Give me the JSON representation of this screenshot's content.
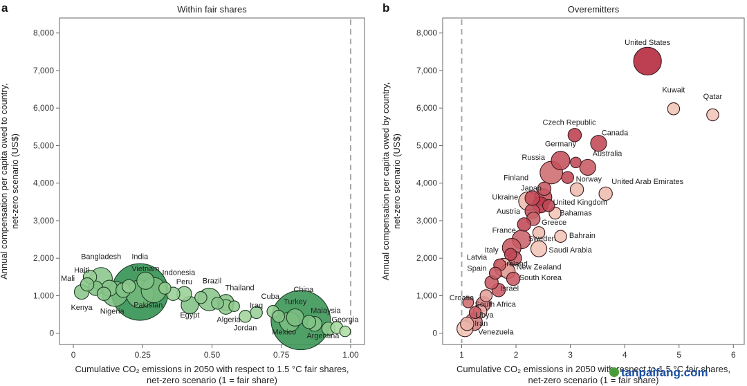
{
  "watermark": "tanpaifang.com",
  "chart_data": [
    {
      "type": "scatter",
      "panel_label": "a",
      "title": "Within fair shares",
      "xlabel_line1": "Cumulative CO₂ emissions in 2050 with respect to 1.5 °C fair shares,",
      "xlabel_line2": "net-zero scenario (1 = fair share)",
      "ylabel_line1": "Annual compensation per capita owed to country,",
      "ylabel_line2": "net-zero scenario (US$)",
      "xlim": [
        -0.05,
        1.05
      ],
      "ylim": [
        -300,
        8400
      ],
      "xticks": [
        0,
        0.25,
        0.5,
        0.75,
        1.0
      ],
      "xtick_labels": [
        "0",
        "0.25",
        "0.50",
        "0.75",
        "1.00"
      ],
      "yticks": [
        0,
        1000,
        2000,
        3000,
        4000,
        5000,
        6000,
        7000,
        8000
      ],
      "ytick_labels": [
        "0",
        "1,000",
        "2,000",
        "3,000",
        "4,000",
        "5,000",
        "6,000",
        "7,000",
        "8,000"
      ],
      "reference_x": 1.0,
      "color_scale": "green",
      "points": [
        {
          "label": "India",
          "x": 0.24,
          "y": 1100,
          "size": 40,
          "shade": 0.0,
          "lx": 0.24,
          "ly": 1980
        },
        {
          "label": "China",
          "x": 0.82,
          "y": 350,
          "size": 42,
          "shade": 0.05,
          "lx": 0.83,
          "ly": 1100
        },
        {
          "label": "Bangladesh",
          "x": 0.1,
          "y": 1450,
          "size": 14,
          "shade": 0.6,
          "lx": 0.1,
          "ly": 1980
        },
        {
          "label": "Haiti",
          "x": 0.06,
          "y": 1500,
          "size": 7,
          "shade": 0.7,
          "lx": 0.03,
          "ly": 1620
        },
        {
          "label": "Mali",
          "x": 0.05,
          "y": 1300,
          "size": 7,
          "shade": 0.6,
          "lx": -0.02,
          "ly": 1400
        },
        {
          "label": "Vietnam",
          "x": 0.26,
          "y": 1400,
          "size": 10,
          "shade": 0.55,
          "lx": 0.26,
          "ly": 1650
        },
        {
          "label": "Indonesia",
          "x": 0.29,
          "y": 1150,
          "size": 16,
          "shade": 0.5,
          "lx": 0.38,
          "ly": 1550
        },
        {
          "label": "Pakistan",
          "x": 0.24,
          "y": 1050,
          "size": 18,
          "shade": 0.45,
          "lx": 0.27,
          "ly": 690
        },
        {
          "label": "Nigeria",
          "x": 0.15,
          "y": 1050,
          "size": 16,
          "shade": 0.5,
          "lx": 0.14,
          "ly": 520
        },
        {
          "label": "Kenya",
          "x": 0.03,
          "y": 1100,
          "size": 8,
          "shade": 0.6,
          "lx": 0.03,
          "ly": 620
        },
        {
          "label": "Peru",
          "x": 0.4,
          "y": 1050,
          "size": 8,
          "shade": 0.7,
          "lx": 0.4,
          "ly": 1300
        },
        {
          "label": "Brazil",
          "x": 0.49,
          "y": 900,
          "size": 14,
          "shade": 0.6,
          "lx": 0.5,
          "ly": 1330
        },
        {
          "label": "Egypt",
          "x": 0.42,
          "y": 750,
          "size": 10,
          "shade": 0.55,
          "lx": 0.42,
          "ly": 420
        },
        {
          "label": "Thailand",
          "x": 0.55,
          "y": 820,
          "size": 9,
          "shade": 0.6,
          "lx": 0.6,
          "ly": 1150
        },
        {
          "label": "Algeria",
          "x": 0.55,
          "y": 700,
          "size": 8,
          "shade": 0.65,
          "lx": 0.56,
          "ly": 300
        },
        {
          "label": "Iraq",
          "x": 0.66,
          "y": 550,
          "size": 6,
          "shade": 0.7,
          "lx": 0.66,
          "ly": 680
        },
        {
          "label": "Jordan",
          "x": 0.62,
          "y": 450,
          "size": 6,
          "shade": 0.75,
          "lx": 0.62,
          "ly": 80
        },
        {
          "label": "Cuba",
          "x": 0.72,
          "y": 580,
          "size": 6,
          "shade": 0.7,
          "lx": 0.71,
          "ly": 920
        },
        {
          "label": "Turkey",
          "x": 0.8,
          "y": 420,
          "size": 10,
          "shade": 0.5,
          "lx": 0.8,
          "ly": 780
        },
        {
          "label": "Mexico",
          "x": 0.78,
          "y": 300,
          "size": 12,
          "shade": 0.5,
          "lx": 0.76,
          "ly": -30
        },
        {
          "label": "Malaysia",
          "x": 0.87,
          "y": 250,
          "size": 8,
          "shade": 0.6,
          "lx": 0.91,
          "ly": 540
        },
        {
          "label": "Georgia",
          "x": 0.95,
          "y": 150,
          "size": 6,
          "shade": 0.8,
          "lx": 0.98,
          "ly": 300
        },
        {
          "label": "Argentina",
          "x": 0.92,
          "y": 120,
          "size": 7,
          "shade": 0.65,
          "lx": 0.9,
          "ly": -130
        },
        {
          "label": "",
          "x": 0.98,
          "y": 50,
          "size": 5,
          "shade": 0.85,
          "lx": 0,
          "ly": 0
        },
        {
          "label": "",
          "x": 0.13,
          "y": 1200,
          "size": 9,
          "shade": 0.6,
          "lx": 0,
          "ly": 0
        },
        {
          "label": "",
          "x": 0.18,
          "y": 1150,
          "size": 8,
          "shade": 0.55,
          "lx": 0,
          "ly": 0
        },
        {
          "label": "",
          "x": 0.2,
          "y": 1250,
          "size": 7,
          "shade": 0.65,
          "lx": 0,
          "ly": 0
        },
        {
          "label": "",
          "x": 0.08,
          "y": 1200,
          "size": 8,
          "shade": 0.55,
          "lx": 0,
          "ly": 0
        },
        {
          "label": "",
          "x": 0.11,
          "y": 1050,
          "size": 7,
          "shade": 0.6,
          "lx": 0,
          "ly": 0
        },
        {
          "label": "",
          "x": 0.33,
          "y": 1200,
          "size": 6,
          "shade": 0.65,
          "lx": 0,
          "ly": 0
        },
        {
          "label": "",
          "x": 0.36,
          "y": 1050,
          "size": 7,
          "shade": 0.7,
          "lx": 0,
          "ly": 0
        },
        {
          "label": "",
          "x": 0.46,
          "y": 950,
          "size": 6,
          "shade": 0.65,
          "lx": 0,
          "ly": 0
        },
        {
          "label": "",
          "x": 0.52,
          "y": 800,
          "size": 6,
          "shade": 0.6,
          "lx": 0,
          "ly": 0
        },
        {
          "label": "",
          "x": 0.58,
          "y": 720,
          "size": 5,
          "shade": 0.65,
          "lx": 0,
          "ly": 0
        },
        {
          "label": "",
          "x": 0.74,
          "y": 450,
          "size": 6,
          "shade": 0.6,
          "lx": 0,
          "ly": 0
        },
        {
          "label": "",
          "x": 0.85,
          "y": 300,
          "size": 7,
          "shade": 0.55,
          "lx": 0,
          "ly": 0
        }
      ]
    },
    {
      "type": "scatter",
      "panel_label": "b",
      "title": "Overemitters",
      "xlabel_line1": "Cumulative CO₂ emissions in 2050 with respect to 1.5 °C fair shares,",
      "xlabel_line2": "net-zero scenario (1 = fair share)",
      "ylabel_line1": "Annual compensation per capita owed by country,",
      "ylabel_line2": "net-zero scenario (US$)",
      "xlim": [
        0.65,
        6.2
      ],
      "ylim": [
        -300,
        8400
      ],
      "xticks": [
        1,
        2,
        3,
        4,
        5,
        6
      ],
      "xtick_labels": [
        "1",
        "2",
        "3",
        "4",
        "5",
        "6"
      ],
      "yticks": [
        0,
        1000,
        2000,
        3000,
        4000,
        5000,
        6000,
        7000,
        8000
      ],
      "ytick_labels": [
        "0",
        "1,000",
        "2,000",
        "3,000",
        "4,000",
        "5,000",
        "6,000",
        "7,000",
        "8,000"
      ],
      "reference_x": 1.0,
      "color_scale": "red",
      "points": [
        {
          "label": "United States",
          "x": 4.42,
          "y": 7250,
          "size": 18,
          "shade": 0.0,
          "lx": 4.42,
          "ly": 7680
        },
        {
          "label": "Kuwait",
          "x": 4.9,
          "y": 5980,
          "size": 6,
          "shade": 0.9,
          "lx": 4.9,
          "ly": 6420
        },
        {
          "label": "Qatar",
          "x": 5.62,
          "y": 5820,
          "size": 6,
          "shade": 0.9,
          "lx": 5.62,
          "ly": 6240
        },
        {
          "label": "Czech Republic",
          "x": 3.08,
          "y": 5280,
          "size": 7,
          "shade": 0.15,
          "lx": 2.98,
          "ly": 5550
        },
        {
          "label": "Canada",
          "x": 3.52,
          "y": 5060,
          "size": 9,
          "shade": 0.2,
          "lx": 3.82,
          "ly": 5280
        },
        {
          "label": "Germany",
          "x": 2.82,
          "y": 4600,
          "size": 11,
          "shade": 0.25,
          "lx": 2.82,
          "ly": 4980
        },
        {
          "label": "Australia",
          "x": 3.32,
          "y": 4420,
          "size": 9,
          "shade": 0.3,
          "lx": 3.68,
          "ly": 4720
        },
        {
          "label": "Russia",
          "x": 2.65,
          "y": 4280,
          "size": 14,
          "shade": 0.4,
          "lx": 2.32,
          "ly": 4620
        },
        {
          "label": "Norway",
          "x": 3.12,
          "y": 3830,
          "size": 7,
          "shade": 0.85,
          "lx": 3.34,
          "ly": 4040
        },
        {
          "label": "United Arab Emirates",
          "x": 3.65,
          "y": 3720,
          "size": 7,
          "shade": 0.85,
          "lx": 4.42,
          "ly": 3980
        },
        {
          "label": "Finland",
          "x": 2.52,
          "y": 3850,
          "size": 7,
          "shade": 0.3,
          "lx": 2.0,
          "ly": 4080
        },
        {
          "label": "Japan",
          "x": 2.5,
          "y": 3620,
          "size": 10,
          "shade": 0.25,
          "lx": 2.28,
          "ly": 3800
        },
        {
          "label": "Ukraine",
          "x": 2.22,
          "y": 3520,
          "size": 11,
          "shade": 0.85,
          "lx": 1.8,
          "ly": 3560
        },
        {
          "label": "United Kingdom",
          "x": 2.45,
          "y": 3420,
          "size": 9,
          "shade": 0.1,
          "lx": 3.18,
          "ly": 3420
        },
        {
          "label": "Bahamas",
          "x": 2.72,
          "y": 3200,
          "size": 6,
          "shade": 0.9,
          "lx": 3.1,
          "ly": 3140
        },
        {
          "label": "Austria",
          "x": 2.3,
          "y": 3250,
          "size": 8,
          "shade": 0.25,
          "lx": 1.86,
          "ly": 3180
        },
        {
          "label": "Greece",
          "x": 2.32,
          "y": 3050,
          "size": 7,
          "shade": 0.35,
          "lx": 2.7,
          "ly": 2890
        },
        {
          "label": "France",
          "x": 2.1,
          "y": 2500,
          "size": 11,
          "shade": 0.35,
          "lx": 1.78,
          "ly": 2680
        },
        {
          "label": "Sweden",
          "x": 2.42,
          "y": 2680,
          "size": 6,
          "shade": 0.85,
          "lx": 2.48,
          "ly": 2460
        },
        {
          "label": "Bahrain",
          "x": 2.82,
          "y": 2580,
          "size": 6,
          "shade": 0.9,
          "lx": 3.22,
          "ly": 2540
        },
        {
          "label": "Saudi Arabia",
          "x": 2.42,
          "y": 2250,
          "size": 9,
          "shade": 0.9,
          "lx": 3.0,
          "ly": 2150
        },
        {
          "label": "Italy",
          "x": 1.92,
          "y": 2280,
          "size": 11,
          "shade": 0.3,
          "lx": 1.55,
          "ly": 2150
        },
        {
          "label": "Latvia",
          "x": 1.7,
          "y": 1820,
          "size": 6,
          "shade": 0.3,
          "lx": 1.28,
          "ly": 1960
        },
        {
          "label": "Ireland",
          "x": 1.98,
          "y": 2000,
          "size": 7,
          "shade": 0.3,
          "lx": 2.0,
          "ly": 1780
        },
        {
          "label": "New Zealand",
          "x": 1.85,
          "y": 1650,
          "size": 8,
          "shade": 0.7,
          "lx": 2.42,
          "ly": 1700
        },
        {
          "label": "Spain",
          "x": 1.78,
          "y": 1750,
          "size": 11,
          "shade": 0.85,
          "lx": 1.28,
          "ly": 1660
        },
        {
          "label": "South Korea",
          "x": 1.95,
          "y": 1450,
          "size": 7,
          "shade": 0.3,
          "lx": 2.45,
          "ly": 1410
        },
        {
          "label": "Israel",
          "x": 1.68,
          "y": 1150,
          "size": 7,
          "shade": 0.3,
          "lx": 1.88,
          "ly": 1130
        },
        {
          "label": "Croatia",
          "x": 1.12,
          "y": 820,
          "size": 5,
          "shade": 0.4,
          "lx": 1.0,
          "ly": 880
        },
        {
          "label": "South Africa",
          "x": 1.4,
          "y": 780,
          "size": 8,
          "shade": 0.5,
          "lx": 1.62,
          "ly": 700
        },
        {
          "label": "Libya",
          "x": 1.34,
          "y": 580,
          "size": 7,
          "shade": 0.8,
          "lx": 1.42,
          "ly": 420
        },
        {
          "label": "Iran",
          "x": 1.22,
          "y": 300,
          "size": 10,
          "shade": 0.5,
          "lx": 1.36,
          "ly": 200
        },
        {
          "label": "Venezuela",
          "x": 1.06,
          "y": 120,
          "size": 9,
          "shade": 0.9,
          "lx": 1.63,
          "ly": -30
        },
        {
          "label": "",
          "x": 2.3,
          "y": 3600,
          "size": 8,
          "shade": 0.2,
          "lx": 0,
          "ly": 0
        },
        {
          "label": "",
          "x": 2.15,
          "y": 2900,
          "size": 7,
          "shade": 0.2,
          "lx": 0,
          "ly": 0
        },
        {
          "label": "",
          "x": 1.9,
          "y": 2100,
          "size": 6,
          "shade": 0.2,
          "lx": 0,
          "ly": 0
        },
        {
          "label": "",
          "x": 1.55,
          "y": 1350,
          "size": 7,
          "shade": 0.3,
          "lx": 0,
          "ly": 0
        },
        {
          "label": "",
          "x": 1.45,
          "y": 1000,
          "size": 6,
          "shade": 0.7,
          "lx": 0,
          "ly": 0
        },
        {
          "label": "",
          "x": 1.25,
          "y": 550,
          "size": 6,
          "shade": 0.3,
          "lx": 0,
          "ly": 0
        },
        {
          "label": "",
          "x": 1.1,
          "y": 250,
          "size": 7,
          "shade": 0.8,
          "lx": 0,
          "ly": 0
        },
        {
          "label": "",
          "x": 2.95,
          "y": 4150,
          "size": 6,
          "shade": 0.2,
          "lx": 0,
          "ly": 0
        },
        {
          "label": "",
          "x": 3.1,
          "y": 4550,
          "size": 5,
          "shade": 0.2,
          "lx": 0,
          "ly": 0
        },
        {
          "label": "",
          "x": 2.6,
          "y": 3400,
          "size": 6,
          "shade": 0.2,
          "lx": 0,
          "ly": 0
        },
        {
          "label": "",
          "x": 1.62,
          "y": 1600,
          "size": 6,
          "shade": 0.3,
          "lx": 0,
          "ly": 0
        }
      ]
    }
  ]
}
